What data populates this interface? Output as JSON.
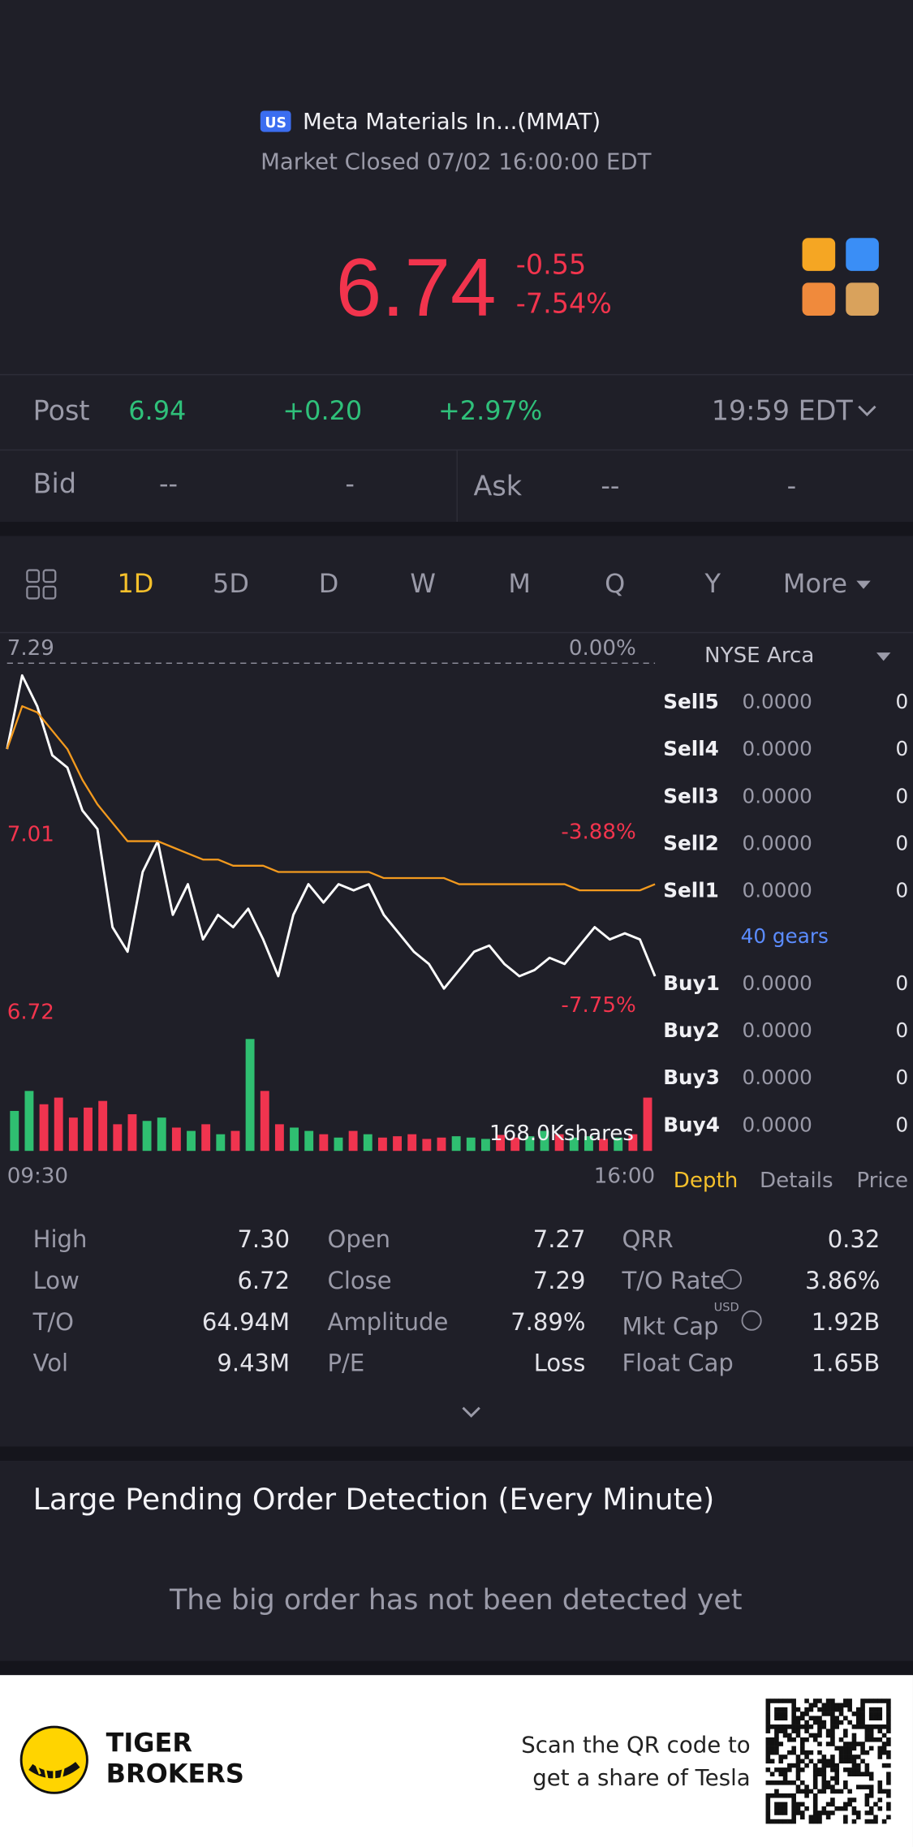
{
  "header": {
    "badge": "US",
    "name": "Meta Materials In...(MMAT)",
    "status": "Market Closed 07/02 16:00:00 EDT"
  },
  "quote": {
    "price": "6.74",
    "change": "-0.55",
    "change_pct": "-7.54%"
  },
  "post": {
    "label": "Post",
    "price": "6.94",
    "change": "+0.20",
    "change_pct": "+2.97%",
    "time": "19:59 EDT"
  },
  "bid": {
    "label": "Bid",
    "price": "--",
    "size": "-"
  },
  "ask": {
    "label": "Ask",
    "price": "--",
    "size": "-"
  },
  "tabs": {
    "items": [
      "1D",
      "5D",
      "D",
      "W",
      "M",
      "Q",
      "Y",
      "More"
    ],
    "active": 0
  },
  "chart": {
    "type": "line",
    "ylim": [
      6.72,
      7.29
    ],
    "yticks": [
      7.29,
      7.01,
      6.72
    ],
    "y2ticks": [
      {
        "value": 0,
        "label": "0.00%"
      },
      {
        "value": -3.88,
        "label": "-3.88%"
      },
      {
        "value": -7.75,
        "label": "-7.75%"
      }
    ],
    "x_labels": [
      "09:30",
      "16:00"
    ],
    "series": [
      {
        "name": "Price",
        "color": "#ffffff",
        "values": [
          7.15,
          7.27,
          7.22,
          7.14,
          7.12,
          7.05,
          7.02,
          6.86,
          6.82,
          6.95,
          7.0,
          6.88,
          6.93,
          6.84,
          6.88,
          6.86,
          6.89,
          6.84,
          6.78,
          6.88,
          6.93,
          6.9,
          6.93,
          6.92,
          6.93,
          6.88,
          6.85,
          6.82,
          6.8,
          6.76,
          6.79,
          6.82,
          6.83,
          6.8,
          6.78,
          6.79,
          6.81,
          6.8,
          6.83,
          6.86,
          6.84,
          6.85,
          6.84,
          6.78
        ]
      },
      {
        "name": "Average",
        "color": "#f39a1e",
        "values": [
          7.15,
          7.22,
          7.21,
          7.18,
          7.15,
          7.1,
          7.06,
          7.03,
          7.0,
          7.0,
          7.0,
          6.99,
          6.98,
          6.97,
          6.97,
          6.96,
          6.96,
          6.96,
          6.95,
          6.95,
          6.95,
          6.95,
          6.95,
          6.95,
          6.95,
          6.94,
          6.94,
          6.94,
          6.94,
          6.94,
          6.93,
          6.93,
          6.93,
          6.93,
          6.93,
          6.93,
          6.93,
          6.93,
          6.92,
          6.92,
          6.92,
          6.92,
          6.92,
          6.93
        ]
      }
    ],
    "volume": {
      "label": "168.0Kshares",
      "ylim": [
        0,
        168000
      ],
      "up_color": "#2fbf71",
      "down_color": "#f0344f",
      "values": [
        60000,
        90000,
        70000,
        80000,
        50000,
        65000,
        75000,
        40000,
        55000,
        45000,
        50000,
        35000,
        30000,
        40000,
        25000,
        30000,
        168000,
        90000,
        40000,
        35000,
        30000,
        25000,
        20000,
        30000,
        25000,
        20000,
        22000,
        25000,
        18000,
        20000,
        22000,
        20000,
        18000,
        24000,
        20000,
        22000,
        30000,
        25000,
        20000,
        22000,
        18000,
        20000,
        25000,
        80000
      ]
    }
  },
  "orderbook": {
    "exchange": "NYSE Arca",
    "sells": [
      {
        "side": "Sell5",
        "price": "0.0000",
        "size": "0"
      },
      {
        "side": "Sell4",
        "price": "0.0000",
        "size": "0"
      },
      {
        "side": "Sell3",
        "price": "0.0000",
        "size": "0"
      },
      {
        "side": "Sell2",
        "price": "0.0000",
        "size": "0"
      },
      {
        "side": "Sell1",
        "price": "0.0000",
        "size": "0"
      }
    ],
    "gears": "40 gears",
    "buys": [
      {
        "side": "Buy1",
        "price": "0.0000",
        "size": "0"
      },
      {
        "side": "Buy2",
        "price": "0.0000",
        "size": "0"
      },
      {
        "side": "Buy3",
        "price": "0.0000",
        "size": "0"
      },
      {
        "side": "Buy4",
        "price": "0.0000",
        "size": "0"
      }
    ],
    "tabs": [
      "Depth",
      "Details",
      "Price"
    ],
    "active": 0
  },
  "stats": {
    "rows": [
      [
        {
          "label": "High",
          "value": "7.30"
        },
        {
          "label": "Open",
          "value": "7.27"
        },
        {
          "label": "QRR",
          "value": "0.32"
        }
      ],
      [
        {
          "label": "Low",
          "value": "6.72"
        },
        {
          "label": "Close",
          "value": "7.29"
        },
        {
          "label": "T/O Rate",
          "value": "3.86%"
        }
      ],
      [
        {
          "label": "T/O",
          "value": "64.94M"
        },
        {
          "label": "Amplitude",
          "value": "7.89%"
        },
        {
          "label": "Mkt Cap",
          "sup": "USD",
          "value": "1.92B"
        }
      ],
      [
        {
          "label": "Vol",
          "value": "9.43M"
        },
        {
          "label": "P/E",
          "value": "Loss"
        },
        {
          "label": "Float Cap",
          "value": "1.65B"
        }
      ]
    ]
  },
  "pending": {
    "title": "Large Pending Order Detection (Every Minute)",
    "empty": "The big order has not been detected yet"
  },
  "footer": {
    "brand": [
      "TIGER",
      "BROKERS"
    ],
    "promo": [
      "Scan the QR code to",
      "get a share of Tesla"
    ]
  }
}
